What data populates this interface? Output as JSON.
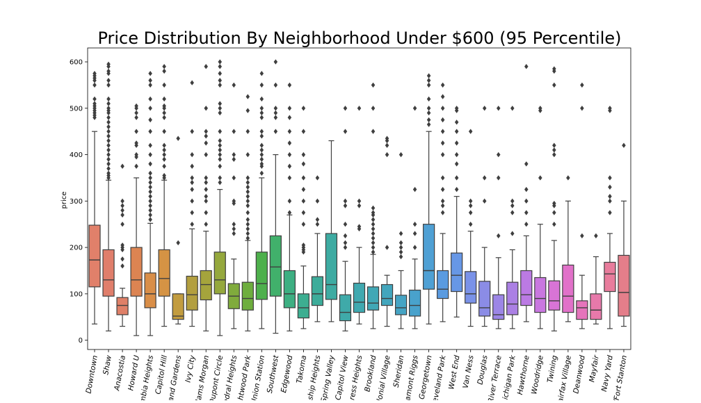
{
  "chart_data": {
    "type": "box",
    "title": "Price Distribution By Neighborhood Under $600 (95 Percentile)",
    "xlabel": "",
    "ylabel": "price",
    "ylim": [
      -20,
      630
    ],
    "yticks": [
      0,
      100,
      200,
      300,
      400,
      500,
      600
    ],
    "grid": false,
    "legend": "none",
    "categories": [
      "Downtown",
      "Shaw",
      "Anacostia",
      "Howard U",
      "Columbia Heights",
      "Capitol Hill",
      "Cleveland Gardens",
      "Ivy City",
      "Adams Morgan",
      "Dupont Circle",
      "Cathedral Heights",
      "Brightwood Park",
      "Union Station",
      "Southwest",
      "Edgewood",
      "Takoma",
      "Township Heights",
      "Spring Valley",
      "Capitol View",
      "Congress Heights",
      "Brookland",
      "Colonial Village",
      "Sheridan",
      "Fairlamont Riggs",
      "Georgetown",
      "Cleveland Park",
      "West End",
      "Van Ness",
      "Douglas",
      "River Terrace",
      "Michigan Park",
      "Hawthorne",
      "Woodridge",
      "Twining",
      "Fairfax Village",
      "Deanwood",
      "Mayfair",
      "Navy Yard",
      "Fort Stanton"
    ],
    "tick_labels": [
      "Downtown",
      "Shaw",
      "Anacostia",
      "Howard U",
      "mbia Heights",
      "Capitol Hill",
      "land Gardens",
      "Ivy City",
      "dams Morgan",
      "Dupont Circle",
      "edral Heights",
      "ghtwood Park",
      "Jnion Station",
      "Southwest",
      "Edgewood",
      "Takoma",
      "ship Heights",
      "Spring Valley",
      "Capitol View",
      "ress Heights",
      "Brookland",
      "lonial Village",
      "Sheridan",
      "amont Riggs",
      "Georgetown",
      "eveland Park",
      "West End",
      "Van Ness",
      "Douglas",
      "River Terrace",
      "ichigan Park",
      "Hawthorne",
      "Woodridge",
      "Twining",
      "airfax Village",
      "Deanwood",
      "Mayfair",
      "Navy Yard",
      "/Fort Stanton"
    ],
    "colors": [
      "#e1806a",
      "#e07e6b",
      "#df8068",
      "#dc8452",
      "#d98e48",
      "#d59344",
      "#c29c3f",
      "#b39f3f",
      "#a5a43c",
      "#95a83d",
      "#80ab3c",
      "#6eae3e",
      "#4eb04c",
      "#41b06b",
      "#3daf82",
      "#3dae91",
      "#3dac9a",
      "#3eaba2",
      "#3faaa9",
      "#40a9b0",
      "#41a8b6",
      "#43a6bd",
      "#45a4c4",
      "#49a2cc",
      "#4fa0d4",
      "#5a9be0",
      "#6797e6",
      "#7a92e8",
      "#8b8ce6",
      "#9c86e6",
      "#ab80e4",
      "#bb7ae3",
      "#c977e0",
      "#d874d6",
      "#e171c9",
      "#e574bb",
      "#e779aa",
      "#e87c9c",
      "#e47e8a"
    ],
    "series": [
      {
        "name": "Downtown",
        "q1": 115,
        "median": 173,
        "q3": 248,
        "whisker_low": 35,
        "whisker_high": 450,
        "outliers": [
          480,
          485,
          490,
          495,
          500,
          505,
          510,
          520,
          550,
          560,
          565,
          570,
          575
        ]
      },
      {
        "name": "Shaw",
        "q1": 95,
        "median": 130,
        "q3": 195,
        "whisker_low": 20,
        "whisker_high": 345,
        "outliers": [
          350,
          355,
          360,
          370,
          380,
          390,
          400,
          410,
          420,
          430,
          440,
          450,
          460,
          470,
          480,
          490,
          495,
          500,
          510,
          520,
          550,
          560,
          575,
          580,
          590,
          595
        ]
      },
      {
        "name": "Anacostia",
        "q1": 55,
        "median": 75,
        "q3": 92,
        "whisker_low": 30,
        "whisker_high": 112,
        "outliers": [
          160,
          175,
          195,
          200,
          205,
          250,
          270,
          280,
          290,
          300,
          375
        ]
      },
      {
        "name": "Howard U",
        "q1": 95,
        "median": 130,
        "q3": 200,
        "whisker_low": 10,
        "whisker_high": 350,
        "outliers": [
          375,
          395,
          400,
          420,
          425,
          450,
          480,
          490,
          500,
          505
        ]
      },
      {
        "name": "Columbia Heights",
        "q1": 70,
        "median": 100,
        "q3": 145,
        "whisker_low": 10,
        "whisker_high": 252,
        "outliers": [
          260,
          270,
          280,
          290,
          300,
          310,
          320,
          330,
          340,
          350,
          360,
          380,
          400,
          420,
          450,
          475,
          500,
          520,
          550,
          560,
          575
        ]
      },
      {
        "name": "Capitol Hill",
        "q1": 95,
        "median": 133,
        "q3": 195,
        "whisker_low": 30,
        "whisker_high": 345,
        "outliers": [
          350,
          355,
          375,
          390,
          400,
          410,
          420,
          450,
          480,
          490,
          500,
          505,
          520,
          550,
          580,
          590
        ]
      },
      {
        "name": "Cleveland Gardens",
        "q1": 45,
        "median": 52,
        "q3": 100,
        "whisker_low": 35,
        "whisker_high": 100,
        "outliers": [
          210,
          435
        ]
      },
      {
        "name": "Ivy City",
        "q1": 65,
        "median": 98,
        "q3": 138,
        "whisker_low": 30,
        "whisker_high": 240,
        "outliers": [
          250,
          275,
          300,
          325,
          340,
          350,
          375,
          400,
          450,
          555
        ]
      },
      {
        "name": "Adams Morgan",
        "q1": 87,
        "median": 120,
        "q3": 150,
        "whisker_low": 20,
        "whisker_high": 235,
        "outliers": [
          250,
          275,
          300,
          310,
          325,
          340,
          350,
          400,
          425,
          440,
          450,
          500,
          590
        ]
      },
      {
        "name": "Dupont Circle",
        "q1": 100,
        "median": 130,
        "q3": 190,
        "whisker_low": 10,
        "whisker_high": 325,
        "outliers": [
          340,
          350,
          375,
          390,
          400,
          410,
          420,
          430,
          450,
          490,
          500,
          510,
          550,
          560,
          575,
          590,
          600
        ]
      },
      {
        "name": "Cathedral Heights",
        "q1": 68,
        "median": 95,
        "q3": 122,
        "whisker_low": 25,
        "whisker_high": 175,
        "outliers": [
          230,
          240,
          250,
          295,
          300,
          350,
          390,
          400,
          450,
          550
        ]
      },
      {
        "name": "Brightwood Park",
        "q1": 65,
        "median": 90,
        "q3": 125,
        "whisker_low": 20,
        "whisker_high": 215,
        "outliers": [
          220,
          230,
          240,
          250,
          260,
          275,
          290,
          300,
          310,
          320,
          330,
          340,
          350,
          400,
          450,
          495,
          525
        ]
      },
      {
        "name": "Union Station",
        "q1": 88,
        "median": 122,
        "q3": 190,
        "whisker_low": 25,
        "whisker_high": 350,
        "outliers": [
          360,
          375,
          380,
          390,
          400,
          410,
          420,
          440,
          450,
          480,
          490,
          500,
          520,
          550,
          575
        ]
      },
      {
        "name": "Southwest",
        "q1": 95,
        "median": 158,
        "q3": 225,
        "whisker_low": 15,
        "whisker_high": 400,
        "outliers": [
          450,
          480,
          490,
          500,
          550,
          600
        ]
      },
      {
        "name": "Edgewood",
        "q1": 70,
        "median": 100,
        "q3": 150,
        "whisker_low": 20,
        "whisker_high": 270,
        "outliers": [
          275,
          300,
          350,
          375,
          400,
          425,
          450,
          480,
          500,
          550
        ]
      },
      {
        "name": "Takoma",
        "q1": 48,
        "median": 70,
        "q3": 100,
        "whisker_low": 25,
        "whisker_high": 160,
        "outliers": [
          190,
          195,
          200,
          205,
          250,
          275,
          300,
          325,
          350,
          380,
          400,
          450,
          500
        ]
      },
      {
        "name": "Township Heights",
        "q1": 75,
        "median": 100,
        "q3": 137,
        "whisker_low": 40,
        "whisker_high": 230,
        "outliers": [
          250,
          260,
          300,
          350
        ]
      },
      {
        "name": "Spring Valley",
        "q1": 88,
        "median": 120,
        "q3": 230,
        "whisker_low": 40,
        "whisker_high": 430,
        "outliers": []
      },
      {
        "name": "Capitol View",
        "q1": 42,
        "median": 60,
        "q3": 98,
        "whisker_low": 20,
        "whisker_high": 170,
        "outliers": [
          200,
          210,
          225,
          250,
          290,
          300,
          450,
          500
        ]
      },
      {
        "name": "Congress Heights",
        "q1": 60,
        "median": 82,
        "q3": 123,
        "whisker_low": 35,
        "whisker_high": 200,
        "outliers": [
          240,
          245,
          290,
          300,
          500
        ]
      },
      {
        "name": "Brookland",
        "q1": 65,
        "median": 80,
        "q3": 115,
        "whisker_low": 25,
        "whisker_high": 185,
        "outliers": [
          190,
          200,
          210,
          220,
          230,
          240,
          250,
          260,
          270,
          275,
          285,
          450,
          500,
          550
        ]
      },
      {
        "name": "Colonial Village",
        "q1": 75,
        "median": 90,
        "q3": 120,
        "whisker_low": 30,
        "whisker_high": 140,
        "outliers": [
          200,
          400,
          420,
          430,
          435
        ]
      },
      {
        "name": "Sheridan",
        "q1": 55,
        "median": 70,
        "q3": 97,
        "whisker_low": 25,
        "whisker_high": 150,
        "outliers": [
          180,
          190,
          200,
          210,
          230,
          400
        ]
      },
      {
        "name": "Fairlamont Riggs",
        "q1": 52,
        "median": 75,
        "q3": 108,
        "whisker_low": 25,
        "whisker_high": 175,
        "outliers": [
          200,
          230,
          250,
          325,
          500
        ]
      },
      {
        "name": "Georgetown",
        "q1": 110,
        "median": 150,
        "q3": 250,
        "whisker_low": 35,
        "whisker_high": 450,
        "outliers": [
          465,
          475,
          490,
          500,
          520,
          550,
          560,
          570
        ]
      },
      {
        "name": "Cleveland Park",
        "q1": 90,
        "median": 110,
        "q3": 150,
        "whisker_low": 40,
        "whisker_high": 230,
        "outliers": [
          275,
          290,
          300,
          325,
          350,
          400,
          425,
          450,
          475,
          500,
          525,
          550
        ]
      },
      {
        "name": "West End",
        "q1": 105,
        "median": 140,
        "q3": 188,
        "whisker_low": 50,
        "whisker_high": 310,
        "outliers": [
          325,
          350,
          380,
          400,
          425,
          450,
          470,
          495,
          500
        ]
      },
      {
        "name": "Van Ness",
        "q1": 80,
        "median": 100,
        "q3": 148,
        "whisker_low": 30,
        "whisker_high": 235,
        "outliers": [
          250,
          275,
          290,
          300,
          450
        ]
      },
      {
        "name": "Douglas",
        "q1": 52,
        "median": 70,
        "q3": 127,
        "whisker_low": 30,
        "whisker_high": 200,
        "outliers": [
          300,
          350,
          500
        ]
      },
      {
        "name": "River Terrace",
        "q1": 45,
        "median": 55,
        "q3": 98,
        "whisker_low": 25,
        "whisker_high": 178,
        "outliers": [
          225,
          350,
          400,
          500
        ]
      },
      {
        "name": "Michigan Park",
        "q1": 55,
        "median": 78,
        "q3": 125,
        "whisker_low": 25,
        "whisker_high": 195,
        "outliers": [
          230,
          275,
          290,
          300,
          500
        ]
      },
      {
        "name": "Hawthorne",
        "q1": 75,
        "median": 98,
        "q3": 150,
        "whisker_low": 40,
        "whisker_high": 225,
        "outliers": [
          250,
          275,
          300,
          325,
          380,
          590
        ]
      },
      {
        "name": "Woodridge",
        "q1": 60,
        "median": 90,
        "q3": 135,
        "whisker_low": 25,
        "whisker_high": 250,
        "outliers": [
          350,
          495,
          500
        ]
      },
      {
        "name": "Twining",
        "q1": 65,
        "median": 85,
        "q3": 128,
        "whisker_low": 20,
        "whisker_high": 215,
        "outliers": [
          250,
          275,
          290,
          295,
          400,
          410,
          420,
          550,
          580,
          585
        ]
      },
      {
        "name": "Fairfax Village",
        "q1": 60,
        "median": 95,
        "q3": 162,
        "whisker_low": 40,
        "whisker_high": 300,
        "outliers": [
          350
        ]
      },
      {
        "name": "Deanwood",
        "q1": 45,
        "median": 70,
        "q3": 85,
        "whisker_low": 25,
        "whisker_high": 140,
        "outliers": [
          225,
          500,
          550
        ]
      },
      {
        "name": "Mayfair",
        "q1": 45,
        "median": 65,
        "q3": 100,
        "whisker_low": 35,
        "whisker_high": 180,
        "outliers": [
          225
        ]
      },
      {
        "name": "Navy Yard",
        "q1": 105,
        "median": 143,
        "q3": 168,
        "whisker_low": 25,
        "whisker_high": 230,
        "outliers": [
          275,
          300,
          310,
          330,
          350,
          495,
          500
        ]
      },
      {
        "name": "Fort Stanton",
        "q1": 52,
        "median": 103,
        "q3": 183,
        "whisker_low": 30,
        "whisker_high": 300,
        "outliers": [
          420
        ]
      }
    ]
  }
}
